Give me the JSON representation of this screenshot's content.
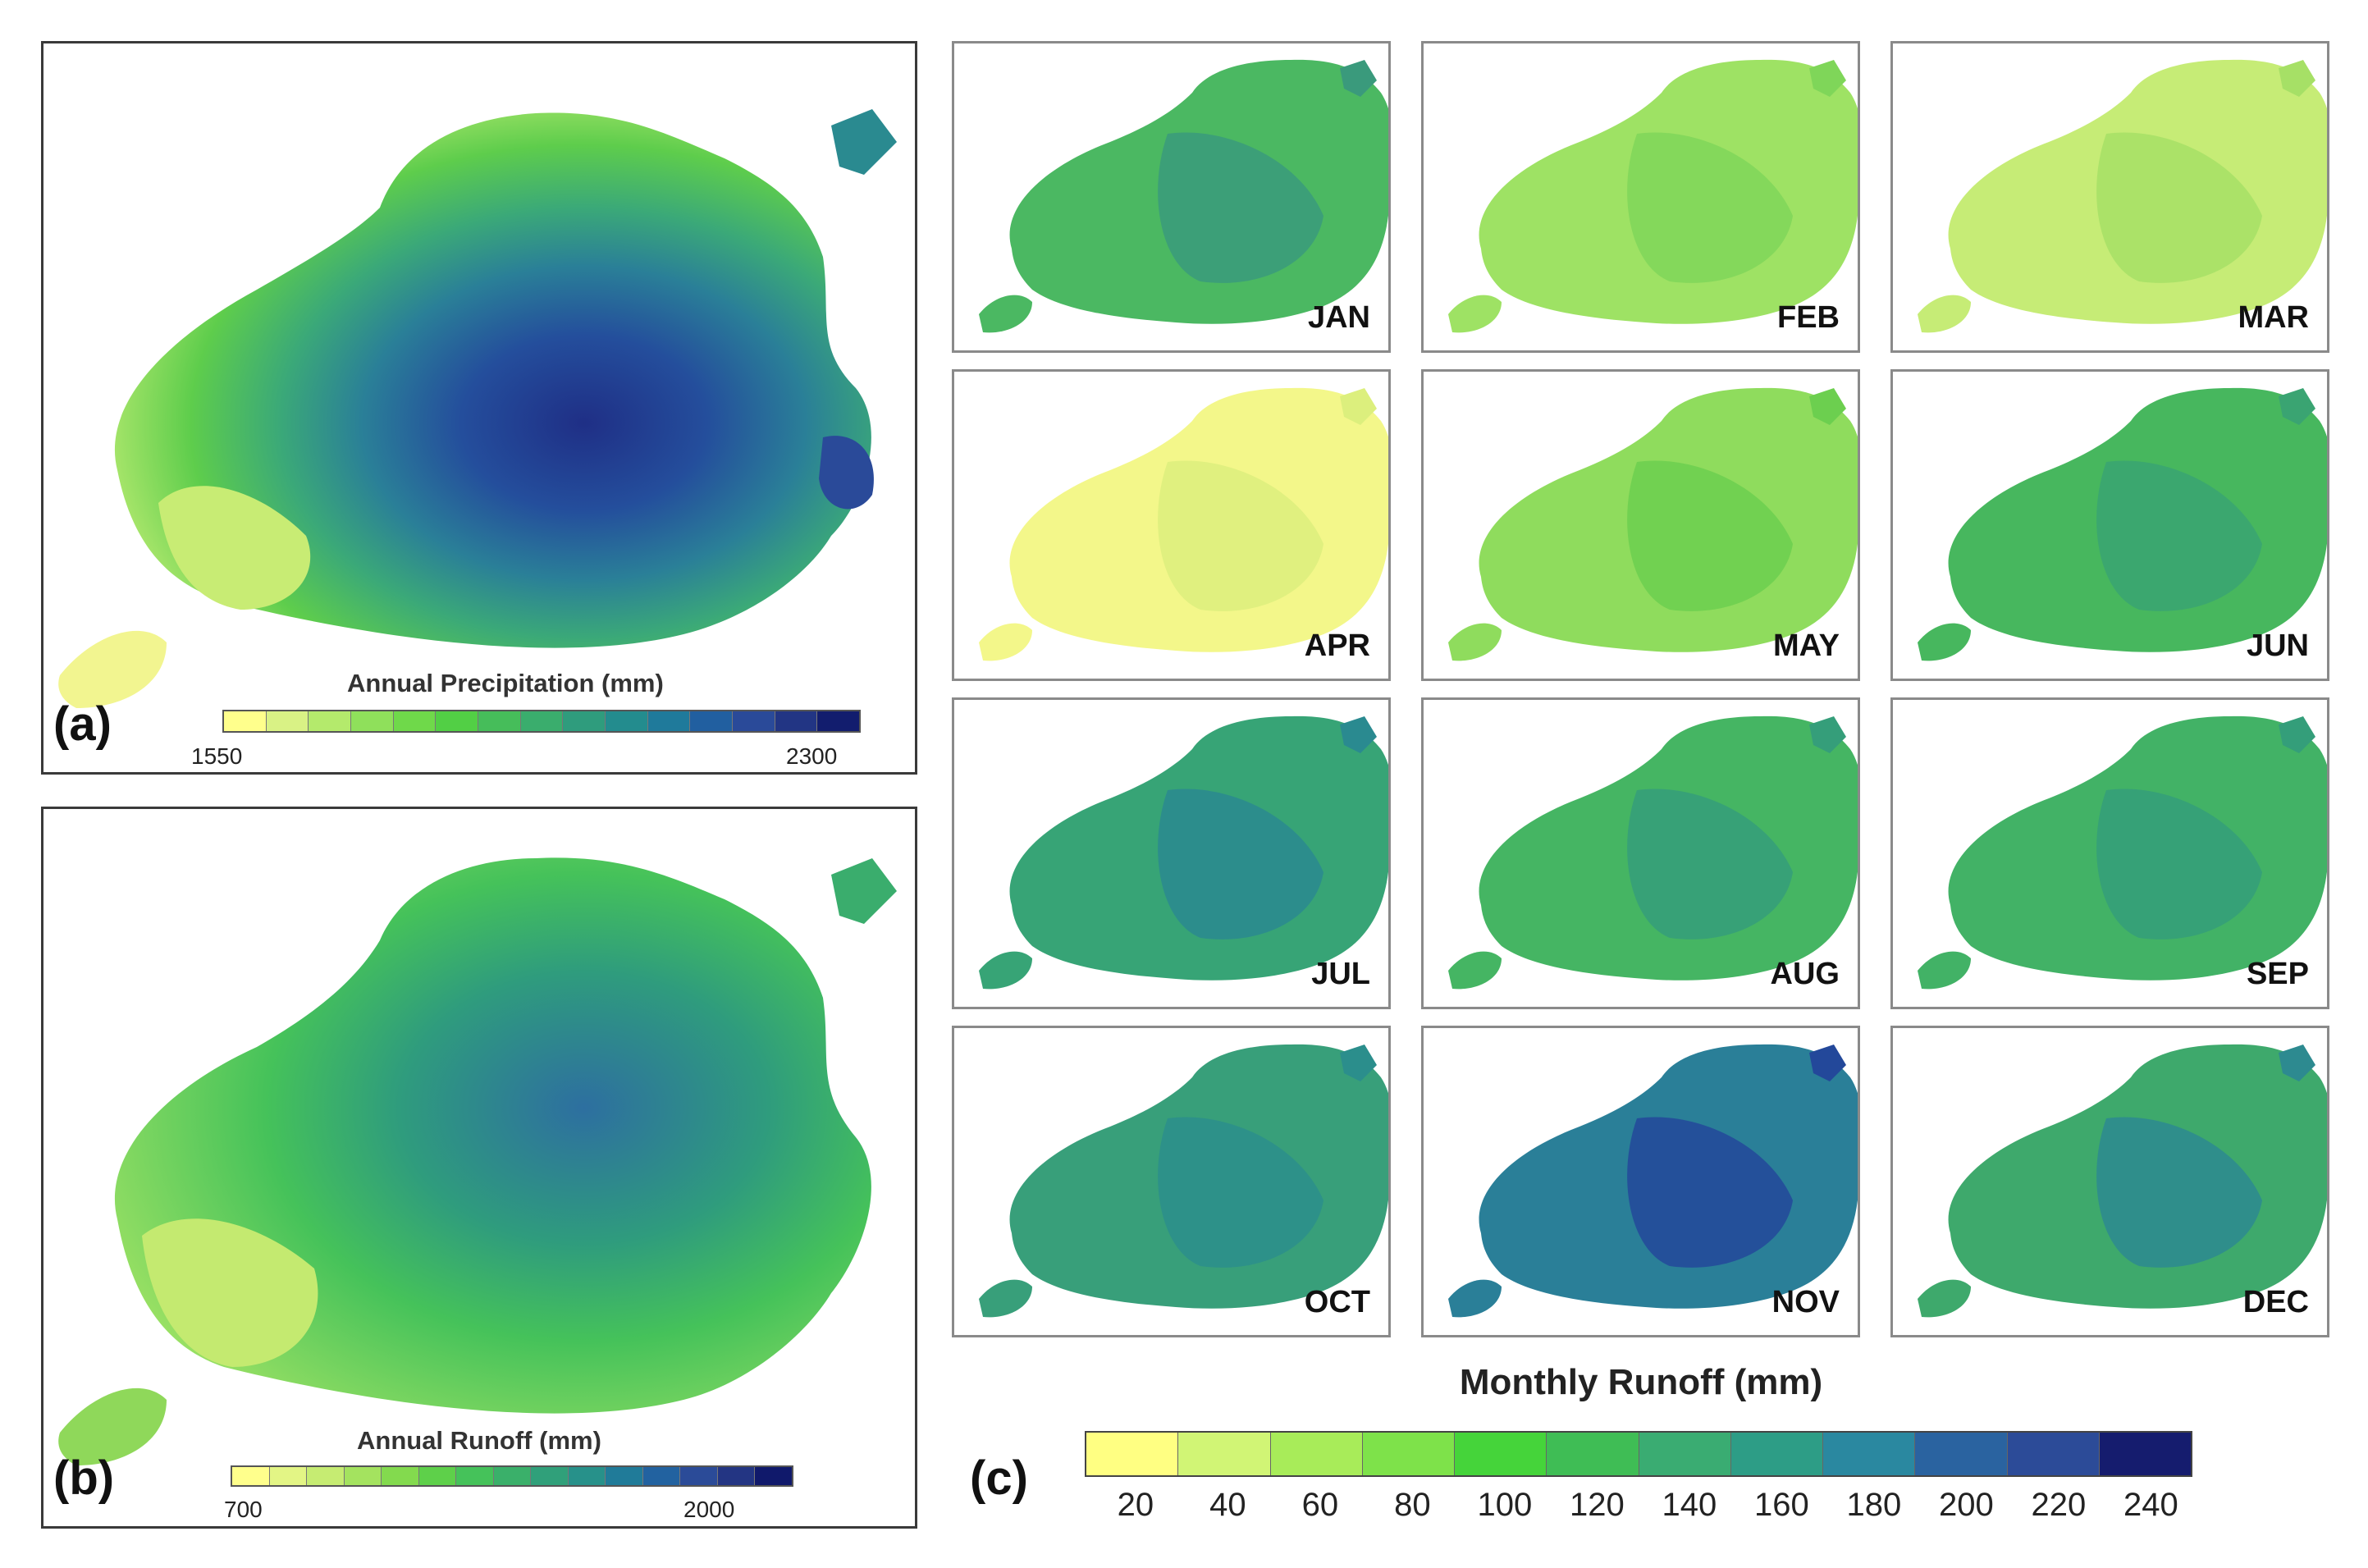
{
  "panel_a": {
    "label": "(a)",
    "legend_title": "Annual Precipitation (mm)",
    "legend_min": "1550",
    "legend_max": "2300",
    "colors": [
      "#ffff8c",
      "#d9f285",
      "#b4ea6c",
      "#8fe05b",
      "#6fd94a",
      "#52cf45",
      "#46bd5a",
      "#3aad6d",
      "#2f9c7d",
      "#238c8e",
      "#1f7a9b",
      "#215fa0",
      "#2a4a99",
      "#223584",
      "#121d6e"
    ]
  },
  "panel_b": {
    "label": "(b)",
    "legend_title": "Annual Runoff (mm)",
    "legend_min": "700",
    "legend_max": "2000",
    "colors": [
      "#ffff8c",
      "#e3f585",
      "#c6ec72",
      "#a4e35f",
      "#83da4e",
      "#5ed04a",
      "#45c25a",
      "#3ab06a",
      "#30a07a",
      "#27918a",
      "#207b99",
      "#2262a0",
      "#2b4b98",
      "#233583",
      "#10196b"
    ]
  },
  "panel_c": {
    "label": "(c)",
    "legend_title": "Monthly Runoff (mm)",
    "ticks": [
      "20",
      "40",
      "60",
      "80",
      "100",
      "120",
      "140",
      "160",
      "180",
      "200",
      "220",
      "240"
    ],
    "colors": [
      "#ffff82",
      "#d1f575",
      "#a8ec59",
      "#7ee24a",
      "#45d43a",
      "#3fbd55",
      "#3aac72",
      "#2d9d86",
      "#2a88a0",
      "#2a63a0",
      "#2c4b98",
      "#151c6e"
    ],
    "months": [
      {
        "name": "JAN",
        "fill": "#4bb862",
        "shade": "#3a9a7c"
      },
      {
        "name": "FEB",
        "fill": "#9ee264",
        "shade": "#7fd659"
      },
      {
        "name": "MAR",
        "fill": "#c6ec76",
        "shade": "#a6e066"
      },
      {
        "name": "APR",
        "fill": "#f3f78a",
        "shade": "#dcef7d"
      },
      {
        "name": "MAY",
        "fill": "#8fdc5d",
        "shade": "#6ccf4f"
      },
      {
        "name": "JUN",
        "fill": "#47b75e",
        "shade": "#3aa472"
      },
      {
        "name": "JUL",
        "fill": "#37a476",
        "shade": "#2a8a90"
      },
      {
        "name": "AUG",
        "fill": "#45b563",
        "shade": "#359e7a"
      },
      {
        "name": "SEP",
        "fill": "#42b266",
        "shade": "#349e7a"
      },
      {
        "name": "OCT",
        "fill": "#389f7a",
        "shade": "#2b8e8c"
      },
      {
        "name": "NOV",
        "fill": "#2a7f98",
        "shade": "#23489a"
      },
      {
        "name": "DEC",
        "fill": "#3ea96c",
        "shade": "#2d8a90"
      }
    ]
  }
}
